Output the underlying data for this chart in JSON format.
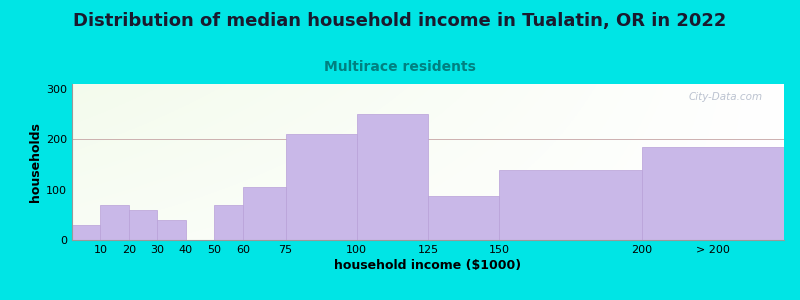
{
  "title": "Distribution of median household income in Tualatin, OR in 2022",
  "subtitle": "Multirace residents",
  "xlabel": "household income ($1000)",
  "ylabel": "households",
  "bar_left_edges": [
    0,
    10,
    20,
    30,
    40,
    50,
    60,
    75,
    100,
    125,
    150,
    200
  ],
  "bar_right_edges": [
    10,
    20,
    30,
    40,
    50,
    60,
    75,
    100,
    125,
    150,
    200,
    250
  ],
  "bar_heights": [
    30,
    70,
    60,
    40,
    0,
    70,
    105,
    210,
    250,
    87,
    140,
    185
  ],
  "tick_positions": [
    10,
    20,
    30,
    40,
    50,
    60,
    75,
    100,
    125,
    150,
    200,
    225
  ],
  "tick_labels": [
    "10",
    "20",
    "30",
    "40",
    "50",
    "60",
    "75",
    "100",
    "125",
    "150",
    "200",
    "> 200"
  ],
  "bar_color": "#c9b8e8",
  "bar_edgecolor": "#b8a0d8",
  "background_color": "#00e5e5",
  "yticks": [
    0,
    100,
    200,
    300
  ],
  "ylim": [
    0,
    310
  ],
  "title_fontsize": 13,
  "subtitle_fontsize": 10,
  "subtitle_color": "#008080",
  "axis_label_fontsize": 9,
  "watermark_text": "City-Data.com",
  "watermark_color": "#b0b8c8"
}
